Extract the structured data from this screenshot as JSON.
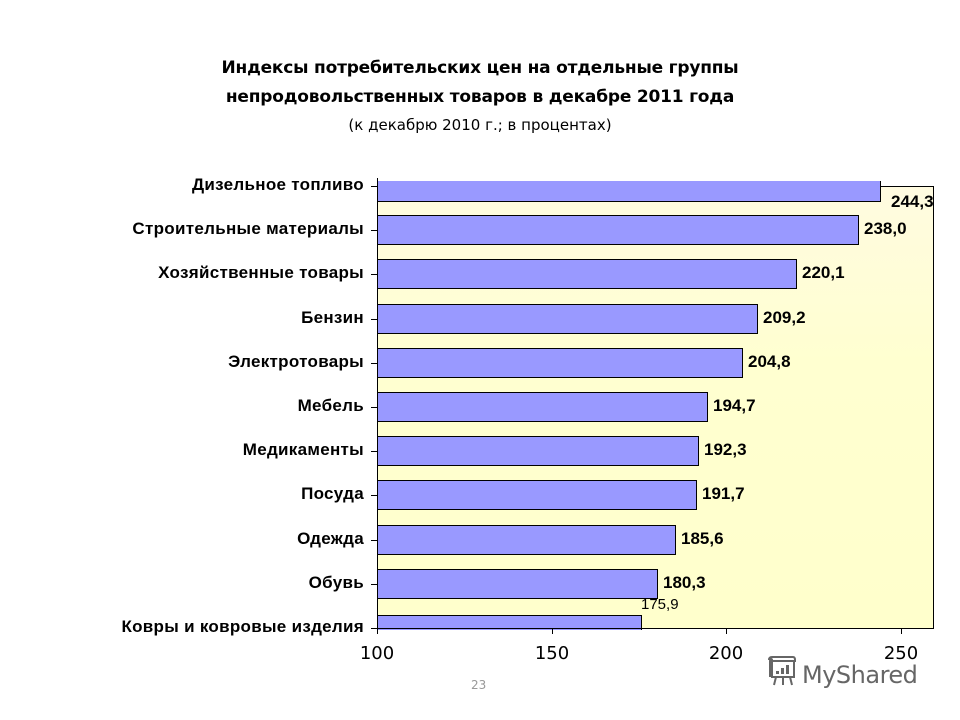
{
  "title": {
    "line1": "Индексы потребительских цен на отдельные группы",
    "line2": "непродовольственных товаров в декабре 2011 года",
    "line3": "(к  декабрю 2010 г.; в процентах)"
  },
  "chart_data": {
    "type": "bar",
    "orientation": "horizontal",
    "title": "Индексы потребительских цен на отдельные группы непродовольственных товаров в декабре 2011 года",
    "subtitle": "(к  декабрю 2010 г.; в процентах)",
    "xlabel": "",
    "ylabel": "",
    "xlim": [
      100,
      260
    ],
    "xticks": [
      100,
      150,
      200,
      250
    ],
    "xtick_labels": [
      "100",
      "150",
      "200",
      "250"
    ],
    "grid": false,
    "legend": null,
    "categories": [
      "Дизельное топливо",
      "Строительные материалы",
      "Хозяйственные товары",
      "Бензин",
      "Электротовары",
      "Мебель",
      "Медикаменты",
      "Посуда",
      "Одежда",
      "Обувь",
      "Ковры и ковровые изделия"
    ],
    "values": [
      244.3,
      238.0,
      220.1,
      209.2,
      204.8,
      194.7,
      192.3,
      191.7,
      185.6,
      180.3,
      175.9
    ],
    "value_labels": [
      "244,3",
      "238,0",
      "220,1",
      "209,2",
      "204,8",
      "194,7",
      "192,3",
      "191,7",
      "185,6",
      "180,3",
      "175,9"
    ],
    "colors": {
      "bar": "#9999ff",
      "bar_border": "#000000",
      "plot_background": "#ffffcc"
    }
  },
  "footer": {
    "page_number": "23",
    "watermark": "MyShared"
  }
}
